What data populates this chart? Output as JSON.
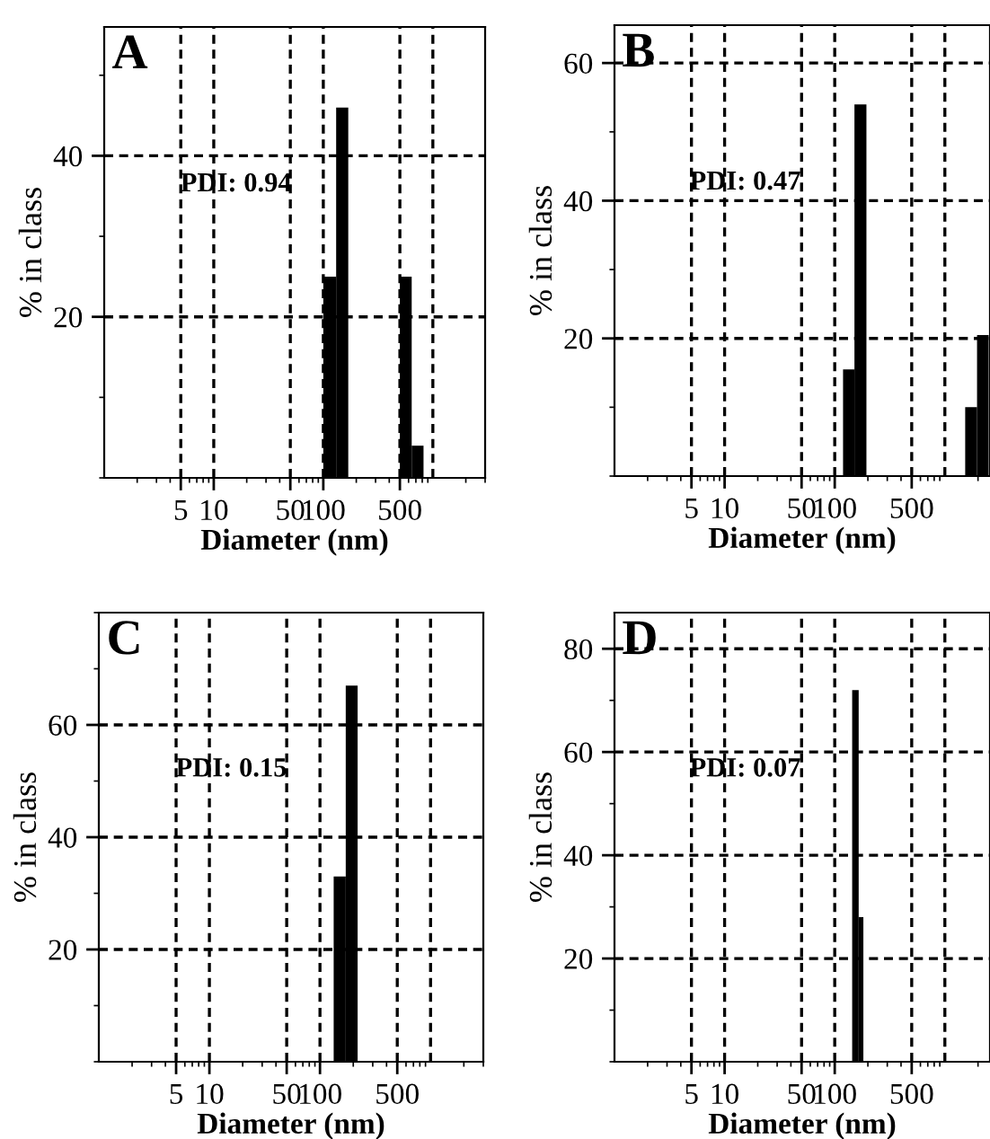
{
  "chart_data": [
    {
      "type": "histogram",
      "title": "A",
      "xlabel": "Diameter (nm)",
      "ylabel": "% in class",
      "log": "x",
      "bins": [
        100,
        131,
        169,
        500,
        641,
        822
      ],
      "values": [
        25,
        46,
        0,
        25,
        4
      ],
      "color": "#000000",
      "xlim": [
        1,
        3000
      ],
      "xticks": [
        5,
        10,
        50,
        100,
        500
      ],
      "ref_lines": [
        {
          "axis": "x",
          "value": 1000,
          "line_style": "dashed",
          "color": "#000000"
        }
      ],
      "ylim": [
        0,
        56
      ],
      "yticks": [
        20,
        40
      ],
      "grid": true,
      "annotations": [
        "PDI: 0.94"
      ]
    },
    {
      "type": "histogram",
      "title": "B",
      "xlabel": "Diameter (nm)",
      "ylabel": "% in class",
      "log": "x",
      "bins": [
        119,
        151,
        194,
        1530,
        1960,
        2500
      ],
      "values": [
        15.5,
        54,
        0,
        10,
        20.5
      ],
      "color": "#000000",
      "xlim": [
        1,
        2570
      ],
      "xticks": [
        5,
        10,
        50,
        100,
        500
      ],
      "ref_lines": [
        {
          "axis": "x",
          "value": 1000,
          "line_style": "dashed",
          "color": "#000000"
        }
      ],
      "ylim": [
        0,
        65.5
      ],
      "yticks": [
        20,
        40,
        60
      ],
      "grid": true,
      "annotations": [
        "PDI: 0.47"
      ]
    },
    {
      "type": "histogram",
      "title": "C",
      "xlabel": "Diameter (nm)",
      "ylabel": "% in class",
      "log": "x",
      "bins": [
        133,
        171,
        219
      ],
      "values": [
        33,
        67
      ],
      "color": "#000000",
      "xlim": [
        1,
        3000
      ],
      "xticks": [
        5,
        10,
        50,
        100,
        500
      ],
      "ref_lines": [
        {
          "axis": "x",
          "value": 1000,
          "line_style": "dashed",
          "color": "#000000"
        }
      ],
      "ylim": [
        0,
        80
      ],
      "yticks": [
        20,
        40,
        60
      ],
      "grid": true,
      "annotations": [
        "PDI: 0.15"
      ]
    },
    {
      "type": "histogram",
      "title": "D",
      "xlabel": "Diameter (nm)",
      "ylabel": "% in class",
      "log": "x",
      "bins": [
        144,
        165,
        182
      ],
      "values": [
        72,
        28
      ],
      "color": "#000000",
      "xlim": [
        1,
        2570
      ],
      "xticks": [
        5,
        10,
        50,
        100,
        500
      ],
      "ref_lines": [
        {
          "axis": "x",
          "value": 1000,
          "line_style": "dashed",
          "color": "#000000"
        }
      ],
      "ylim": [
        0,
        87
      ],
      "yticks": [
        20,
        40,
        60,
        80
      ],
      "grid": true,
      "annotations": [
        "PDI: 0.07"
      ]
    }
  ]
}
